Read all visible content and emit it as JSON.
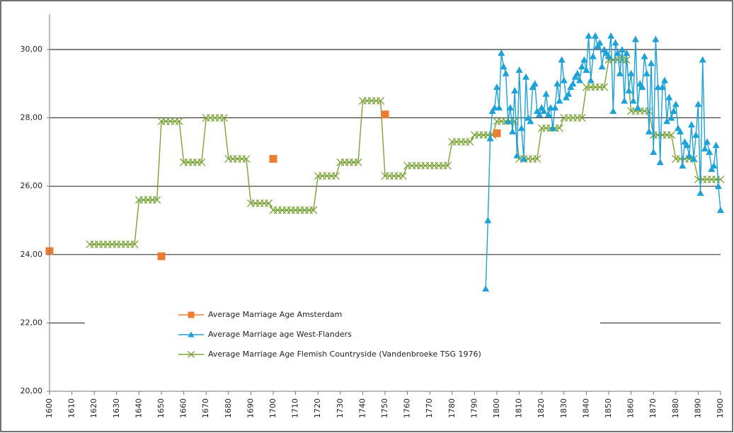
{
  "chart_data": {
    "type": "line",
    "xlim": [
      1600,
      1900
    ],
    "xticks": [
      1600,
      1610,
      1620,
      1630,
      1640,
      1650,
      1660,
      1670,
      1680,
      1690,
      1700,
      1710,
      1720,
      1730,
      1740,
      1750,
      1760,
      1770,
      1780,
      1790,
      1800,
      1810,
      1820,
      1830,
      1840,
      1850,
      1860,
      1870,
      1880,
      1890,
      1900
    ],
    "ylim": [
      20,
      31
    ],
    "yticks": [
      {
        "value": 20,
        "label": "20,00"
      },
      {
        "value": 22,
        "label": "22,00"
      },
      {
        "value": 24,
        "label": "24,00"
      },
      {
        "value": 26,
        "label": "26,00"
      },
      {
        "value": 28,
        "label": "28,00"
      },
      {
        "value": 30,
        "label": "30,00"
      }
    ],
    "grid": true,
    "legend": "lower-left",
    "series": [
      {
        "name": "Average Marriage Age Amsterdam",
        "color": "#ed7d31",
        "marker": "square",
        "line": false,
        "x": [
          1600,
          1650,
          1700,
          1750,
          1800
        ],
        "values": [
          24.1,
          23.95,
          26.8,
          28.1,
          27.55
        ]
      },
      {
        "name": "Average Marriage age West-Flanders",
        "color": "#1ea1d6",
        "marker": "triangle",
        "line": true,
        "x": [
          1795,
          1796,
          1797,
          1798,
          1799,
          1800,
          1801,
          1802,
          1803,
          1804,
          1805,
          1806,
          1807,
          1808,
          1809,
          1810,
          1811,
          1812,
          1813,
          1814,
          1815,
          1816,
          1817,
          1818,
          1819,
          1820,
          1821,
          1822,
          1823,
          1824,
          1825,
          1826,
          1827,
          1828,
          1829,
          1830,
          1831,
          1832,
          1833,
          1834,
          1835,
          1836,
          1837,
          1838,
          1839,
          1840,
          1841,
          1842,
          1843,
          1844,
          1845,
          1846,
          1847,
          1848,
          1849,
          1850,
          1851,
          1852,
          1853,
          1854,
          1855,
          1856,
          1857,
          1858,
          1859,
          1860,
          1861,
          1862,
          1863,
          1864,
          1865,
          1866,
          1867,
          1868,
          1869,
          1870,
          1871,
          1872,
          1873,
          1874,
          1875,
          1876,
          1877,
          1878,
          1879,
          1880,
          1881,
          1882,
          1883,
          1884,
          1885,
          1886,
          1887,
          1888,
          1889,
          1890,
          1891,
          1892,
          1893,
          1894,
          1895,
          1896,
          1897,
          1898,
          1899,
          1900
        ],
        "values": [
          23.0,
          25.0,
          27.4,
          28.2,
          28.3,
          28.9,
          28.3,
          29.9,
          29.5,
          29.3,
          27.9,
          28.3,
          27.6,
          28.8,
          26.9,
          29.4,
          27.7,
          26.8,
          29.2,
          28.0,
          27.9,
          28.9,
          29.0,
          28.2,
          28.1,
          28.3,
          28.2,
          28.7,
          28.1,
          28.3,
          27.7,
          28.3,
          29.0,
          28.5,
          29.7,
          29.1,
          28.6,
          28.7,
          28.9,
          29.0,
          29.2,
          29.3,
          29.1,
          29.5,
          29.7,
          29.4,
          30.4,
          29.1,
          29.8,
          30.4,
          30.1,
          30.2,
          29.5,
          30.0,
          29.9,
          29.8,
          30.4,
          28.2,
          30.2,
          29.9,
          29.3,
          30.0,
          28.5,
          29.9,
          28.8,
          29.3,
          28.5,
          30.3,
          28.3,
          29.0,
          28.9,
          29.8,
          29.3,
          27.6,
          29.6,
          27.0,
          30.3,
          28.9,
          26.7,
          28.9,
          29.1,
          27.9,
          28.6,
          28.0,
          28.2,
          28.4,
          27.7,
          27.6,
          26.6,
          27.3,
          27.2,
          26.9,
          27.8,
          26.8,
          27.5,
          28.4,
          25.8,
          29.7,
          27.1,
          27.3,
          27.0,
          26.5,
          26.6,
          27.2,
          26.0,
          25.3
        ]
      },
      {
        "name": "Average Marriage Age Flemish Countryside (Vandenbroeke TSG 1976)",
        "color": "#7aa33a",
        "marker": "x",
        "line": true,
        "x": [
          1618,
          1620,
          1622,
          1624,
          1626,
          1628,
          1630,
          1632,
          1634,
          1636,
          1638,
          1640,
          1642,
          1644,
          1646,
          1648,
          1650,
          1652,
          1654,
          1656,
          1658,
          1660,
          1662,
          1664,
          1666,
          1668,
          1670,
          1672,
          1674,
          1676,
          1678,
          1680,
          1682,
          1684,
          1686,
          1688,
          1690,
          1692,
          1694,
          1696,
          1698,
          1700,
          1702,
          1704,
          1706,
          1708,
          1710,
          1712,
          1714,
          1716,
          1718,
          1720,
          1722,
          1724,
          1726,
          1728,
          1730,
          1732,
          1734,
          1736,
          1738,
          1740,
          1742,
          1744,
          1746,
          1748,
          1750,
          1752,
          1754,
          1756,
          1758,
          1760,
          1762,
          1764,
          1766,
          1768,
          1770,
          1772,
          1774,
          1776,
          1778,
          1780,
          1782,
          1784,
          1786,
          1788,
          1790,
          1792,
          1794,
          1796,
          1798,
          1800,
          1802,
          1804,
          1806,
          1808,
          1810,
          1812,
          1814,
          1816,
          1818,
          1820,
          1822,
          1824,
          1826,
          1828,
          1830,
          1832,
          1834,
          1836,
          1838,
          1840,
          1842,
          1844,
          1846,
          1848,
          1850,
          1852,
          1854,
          1856,
          1858,
          1860,
          1862,
          1864,
          1866,
          1868,
          1870,
          1872,
          1874,
          1876,
          1878,
          1880,
          1882,
          1884,
          1886,
          1888,
          1890,
          1892,
          1894,
          1896,
          1898,
          1900
        ],
        "values": [
          24.3,
          24.3,
          24.3,
          24.3,
          24.3,
          24.3,
          24.3,
          24.3,
          24.3,
          24.3,
          24.3,
          25.6,
          25.6,
          25.6,
          25.6,
          25.6,
          27.9,
          27.9,
          27.9,
          27.9,
          27.9,
          26.7,
          26.7,
          26.7,
          26.7,
          26.7,
          28.0,
          28.0,
          28.0,
          28.0,
          28.0,
          26.8,
          26.8,
          26.8,
          26.8,
          26.8,
          25.5,
          25.5,
          25.5,
          25.5,
          25.5,
          25.3,
          25.3,
          25.3,
          25.3,
          25.3,
          25.3,
          25.3,
          25.3,
          25.3,
          25.3,
          26.3,
          26.3,
          26.3,
          26.3,
          26.3,
          26.7,
          26.7,
          26.7,
          26.7,
          26.7,
          28.5,
          28.5,
          28.5,
          28.5,
          28.5,
          26.3,
          26.3,
          26.3,
          26.3,
          26.3,
          26.6,
          26.6,
          26.6,
          26.6,
          26.6,
          26.6,
          26.6,
          26.6,
          26.6,
          26.6,
          27.3,
          27.3,
          27.3,
          27.3,
          27.3,
          27.5,
          27.5,
          27.5,
          27.5,
          27.5,
          27.9,
          27.9,
          27.9,
          27.9,
          27.9,
          26.8,
          26.8,
          26.8,
          26.8,
          26.8,
          27.7,
          27.7,
          27.7,
          27.7,
          27.7,
          28.0,
          28.0,
          28.0,
          28.0,
          28.0,
          28.9,
          28.9,
          28.9,
          28.9,
          28.9,
          29.7,
          29.7,
          29.7,
          29.7,
          29.7,
          28.2,
          28.2,
          28.2,
          28.2,
          28.2,
          27.5,
          27.5,
          27.5,
          27.5,
          27.5,
          26.8,
          26.8,
          26.8,
          26.8,
          26.8,
          26.2,
          26.2,
          26.2,
          26.2,
          26.2,
          26.2
        ]
      }
    ]
  }
}
